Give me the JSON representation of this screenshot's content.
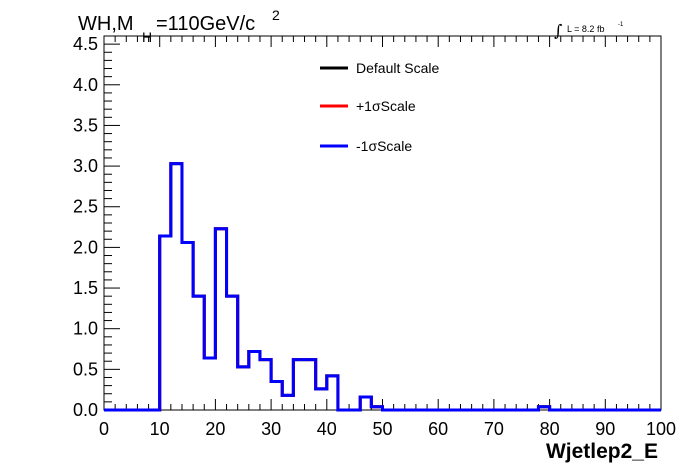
{
  "chart_data": {
    "type": "line",
    "title": {
      "prefix": "WH,M",
      "subscript": "H",
      "suffix": "=110GeV/c",
      "superscript": "2"
    },
    "luminosity": {
      "text": "L = 8.2 fb",
      "superscript": "-1",
      "integral_symbol": "∫"
    },
    "xlabel": "Wjetlep2_E",
    "ylabel": "",
    "xlim": [
      0,
      100
    ],
    "ylim": [
      0,
      4.6
    ],
    "x_ticks": [
      0,
      10,
      20,
      30,
      40,
      50,
      60,
      70,
      80,
      90,
      100
    ],
    "x_tick_labels": [
      "0",
      "10",
      "20",
      "30",
      "40",
      "50",
      "60",
      "70",
      "80",
      "90",
      "100"
    ],
    "y_ticks": [
      0,
      0.5,
      1.0,
      1.5,
      2.0,
      2.5,
      3.0,
      3.5,
      4.0,
      4.5
    ],
    "y_tick_labels": [
      "0.0",
      "0.5",
      "1.0",
      "1.5",
      "2.0",
      "2.5",
      "3.0",
      "3.5",
      "4.0",
      "4.5"
    ],
    "grid": false,
    "legend_position": "top-right",
    "bin_edges": [
      0,
      2,
      4,
      6,
      8,
      10,
      12,
      14,
      16,
      18,
      20,
      22,
      24,
      26,
      28,
      30,
      32,
      34,
      36,
      38,
      40,
      42,
      44,
      46,
      48,
      50,
      52,
      54,
      56,
      58,
      60,
      62,
      64,
      66,
      68,
      70,
      72,
      74,
      76,
      78,
      80,
      82,
      84,
      86,
      88,
      90,
      92,
      94,
      96,
      98,
      100
    ],
    "series": [
      {
        "name": "Default Scale",
        "color": "#000000",
        "values": [
          0,
          0,
          0,
          0,
          0,
          2.14,
          3.03,
          2.06,
          1.4,
          0.64,
          2.23,
          1.4,
          0.53,
          0.72,
          0.62,
          0.35,
          0.18,
          0.62,
          0.62,
          0.26,
          0.42,
          0.0,
          0.0,
          0.16,
          0.04,
          0.0,
          0.0,
          0.0,
          0.0,
          0.0,
          0.0,
          0.0,
          0.0,
          0.0,
          0.0,
          0.0,
          0.0,
          0.0,
          0.0,
          0.04,
          0.0,
          0.0,
          0.0,
          0.0,
          0.0,
          0.0,
          0.0,
          0.0,
          0.0,
          0.0
        ]
      },
      {
        "name": "+1σScale",
        "color": "#ff0000",
        "values": [
          0,
          0,
          0,
          0,
          0,
          2.14,
          3.03,
          2.06,
          1.4,
          0.64,
          2.23,
          1.4,
          0.53,
          0.72,
          0.62,
          0.35,
          0.18,
          0.62,
          0.62,
          0.26,
          0.42,
          0.0,
          0.0,
          0.16,
          0.04,
          0.0,
          0.0,
          0.0,
          0.0,
          0.0,
          0.0,
          0.0,
          0.0,
          0.0,
          0.0,
          0.0,
          0.0,
          0.0,
          0.0,
          0.04,
          0.0,
          0.0,
          0.0,
          0.0,
          0.0,
          0.0,
          0.0,
          0.0,
          0.0,
          0.0
        ]
      },
      {
        "name": "-1σScale",
        "color": "#0000ff",
        "values": [
          0,
          0,
          0,
          0,
          0,
          2.14,
          3.03,
          2.06,
          1.4,
          0.64,
          2.23,
          1.4,
          0.53,
          0.72,
          0.62,
          0.35,
          0.18,
          0.62,
          0.62,
          0.26,
          0.42,
          0.0,
          0.0,
          0.16,
          0.04,
          0.0,
          0.0,
          0.0,
          0.0,
          0.0,
          0.0,
          0.0,
          0.0,
          0.0,
          0.0,
          0.0,
          0.0,
          0.0,
          0.0,
          0.04,
          0.0,
          0.0,
          0.0,
          0.0,
          0.0,
          0.0,
          0.0,
          0.0,
          0.0,
          0.0
        ]
      }
    ]
  }
}
